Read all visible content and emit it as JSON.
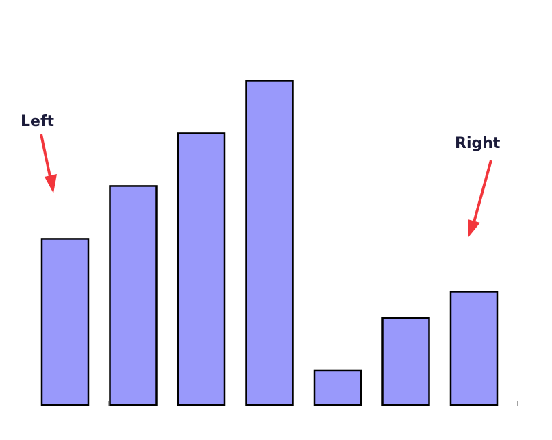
{
  "chart_data": {
    "type": "bar",
    "categories": [
      "",
      "",
      "",
      "",
      "",
      "",
      ""
    ],
    "values": [
      6.3,
      8.3,
      10.3,
      12.3,
      1.3,
      3.3,
      4.3
    ],
    "ylim": [
      0,
      14
    ],
    "bar_color": "#9999fb",
    "bar_edge_color": "#000000",
    "grid": false,
    "axes_visible": false,
    "annotations": [
      {
        "text": "Left",
        "target_bar": 0,
        "color": "#f2363c"
      },
      {
        "text": "Right",
        "target_bar": 6,
        "color": "#f2363c"
      }
    ]
  }
}
